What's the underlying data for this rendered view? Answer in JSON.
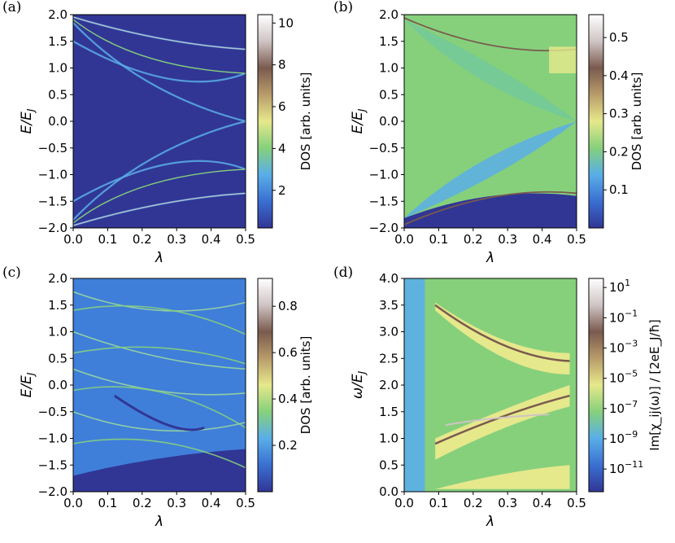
{
  "chart_data": [
    {
      "id": "a",
      "panel_label": "(a)",
      "type": "heatmap",
      "xlabel": "λ",
      "ylabel": "E/E_J",
      "ylabel_main": "E/E",
      "ylabel_sub": "J",
      "xlim": [
        0.0,
        0.5
      ],
      "ylim": [
        -2.0,
        2.0
      ],
      "xticks": [
        "0.0",
        "0.1",
        "0.2",
        "0.3",
        "0.4",
        "0.5"
      ],
      "yticks": [
        "-2.0",
        "-1.5",
        "-1.0",
        "-0.5",
        "0.0",
        "0.5",
        "1.0",
        "1.5",
        "2.0"
      ],
      "colorbar": {
        "label": "DOS [arb. units]",
        "range": [
          0.2,
          10.4
        ],
        "ticks": [
          {
            "v": 2,
            "t": "2"
          },
          {
            "v": 4,
            "t": "4"
          },
          {
            "v": 6,
            "t": "6"
          },
          {
            "v": 8,
            "t": "8"
          },
          {
            "v": 10,
            "t": "10"
          }
        ]
      },
      "background_color": "#313695"
    },
    {
      "id": "b",
      "panel_label": "(b)",
      "type": "heatmap",
      "xlabel": "λ",
      "ylabel": "E/E_J",
      "ylabel_main": "E/E",
      "ylabel_sub": "J",
      "xlim": [
        0.0,
        0.5
      ],
      "ylim": [
        -2.0,
        2.0
      ],
      "xticks": [
        "0.0",
        "0.1",
        "0.2",
        "0.3",
        "0.4",
        "0.5"
      ],
      "yticks": [
        "-2.0",
        "-1.5",
        "-1.0",
        "-0.5",
        "0.0",
        "0.5",
        "1.0",
        "1.5",
        "2.0"
      ],
      "colorbar": {
        "label": "DOS [arb. units]",
        "range": [
          0.0,
          0.56
        ],
        "ticks": [
          {
            "v": 0.1,
            "t": "0.1"
          },
          {
            "v": 0.2,
            "t": "0.2"
          },
          {
            "v": 0.3,
            "t": "0.3"
          },
          {
            "v": 0.4,
            "t": "0.4"
          },
          {
            "v": 0.5,
            "t": "0.5"
          }
        ]
      },
      "background_color": "#86d07c"
    },
    {
      "id": "c",
      "panel_label": "(c)",
      "type": "heatmap",
      "xlabel": "λ",
      "ylabel": "E/E_J",
      "ylabel_main": "E/E",
      "ylabel_sub": "J",
      "xlim": [
        0.0,
        0.5
      ],
      "ylim": [
        -2.0,
        2.0
      ],
      "xticks": [
        "0.0",
        "0.1",
        "0.2",
        "0.3",
        "0.4",
        "0.5"
      ],
      "yticks": [
        "-2.0",
        "-1.5",
        "-1.0",
        "-0.5",
        "0.0",
        "0.5",
        "1.0",
        "1.5",
        "2.0"
      ],
      "colorbar": {
        "label": "DOS [arb. units]",
        "range": [
          0.0,
          0.92
        ],
        "ticks": [
          {
            "v": 0.2,
            "t": "0.2"
          },
          {
            "v": 0.4,
            "t": "0.4"
          },
          {
            "v": 0.6,
            "t": "0.6"
          },
          {
            "v": 0.8,
            "t": "0.8"
          }
        ]
      },
      "background_color": "#3f7fd9"
    },
    {
      "id": "d",
      "panel_label": "(d)",
      "type": "heatmap",
      "xlabel": "λ",
      "ylabel": "ω/E_J",
      "ylabel_main": "ω/E",
      "ylabel_sub": "J",
      "xlim": [
        0.0,
        0.5
      ],
      "ylim": [
        0.0,
        4.0
      ],
      "xticks": [
        "0.0",
        "0.1",
        "0.2",
        "0.3",
        "0.4",
        "0.5"
      ],
      "yticks": [
        "0.0",
        "0.5",
        "1.0",
        "1.5",
        "2.0",
        "2.5",
        "3.0",
        "3.5",
        "4.0"
      ],
      "colorbar": {
        "label": "Im[χ_ij(ω)] / [2eE_J/ħ]",
        "scale": "log",
        "range": [
          -12.5,
          1.6
        ],
        "ticks": [
          {
            "v": 1,
            "t": "10^1"
          },
          {
            "v": -1,
            "t": "10^-1"
          },
          {
            "v": -3,
            "t": "10^-3"
          },
          {
            "v": -5,
            "t": "10^-5"
          },
          {
            "v": -7,
            "t": "10^-7"
          },
          {
            "v": -9,
            "t": "10^-9"
          },
          {
            "v": -11,
            "t": "10^-11"
          }
        ]
      },
      "background_color": "#86d07c"
    }
  ],
  "colormap": [
    "#313695",
    "#3a6fd1",
    "#5aaee8",
    "#86d07c",
    "#e6e88c",
    "#b89c6a",
    "#7a5a4e",
    "#cfc4c4",
    "#ffffff"
  ]
}
